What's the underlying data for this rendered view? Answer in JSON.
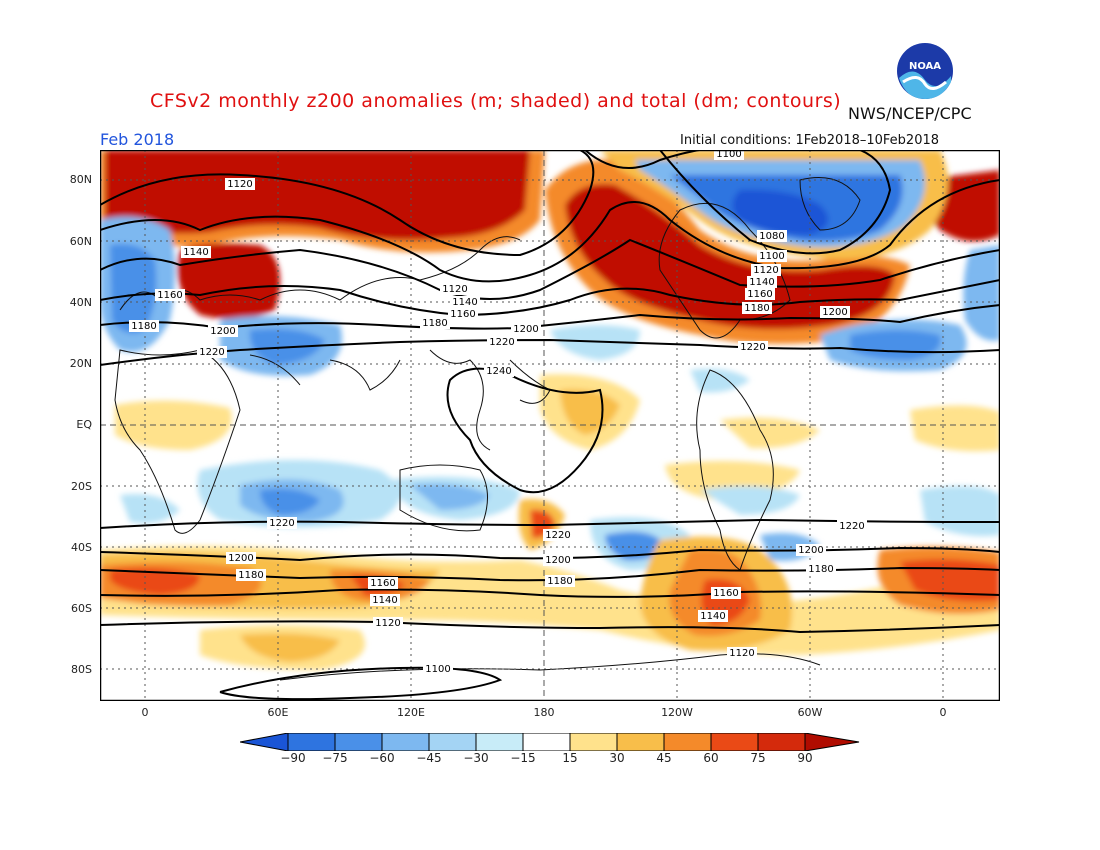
{
  "header": {
    "title": "CFSv2 monthly z200 anomalies (m; shaded) and total (dm; contours)",
    "agency": "NWS/NCEP/CPC",
    "month": "Feb 2018",
    "initial_conditions": "Initial conditions: 1Feb2018–10Feb2018",
    "logo_text": "NOAA"
  },
  "axes": {
    "lat_labels": [
      "80N",
      "60N",
      "40N",
      "20N",
      "EQ",
      "20S",
      "40S",
      "60S",
      "80S"
    ],
    "lon_labels": [
      "0",
      "60E",
      "120E",
      "180",
      "120W",
      "60W",
      "0"
    ]
  },
  "colorbar": {
    "labels": [
      "−90",
      "−75",
      "−60",
      "−45",
      "−30",
      "−15",
      "15",
      "30",
      "45",
      "60",
      "75",
      "90"
    ],
    "colors": [
      "#1a55d6",
      "#2e74e0",
      "#4a90e8",
      "#7db8f0",
      "#b7e2f6",
      "#ffffff",
      "#ffe28c",
      "#f8be4a",
      "#f48a2a",
      "#ea4a16",
      "#c01000"
    ]
  },
  "contour_labels": {
    "nh": [
      "1100",
      "1120",
      "1140",
      "1160",
      "1180",
      "1200",
      "1220",
      "1240",
      "1080"
    ],
    "sh": [
      "1220",
      "1200",
      "1180",
      "1160",
      "1140",
      "1120",
      "1100"
    ]
  }
}
